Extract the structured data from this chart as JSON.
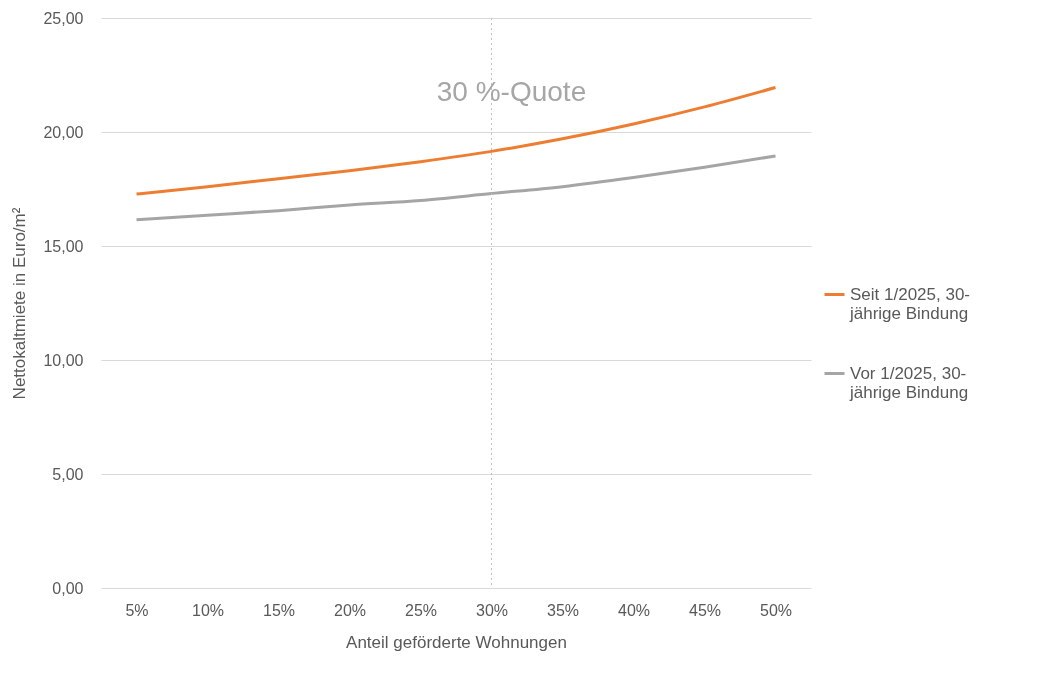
{
  "chart_data": {
    "type": "line",
    "xlabel": "Anteil geförderte Wohnungen",
    "ylabel": "Nettokaltmiete in Euro/m²",
    "categories": [
      "5%",
      "10%",
      "15%",
      "20%",
      "25%",
      "30%",
      "35%",
      "40%",
      "45%",
      "50%"
    ],
    "series": [
      {
        "name": "Seit 1/2025, 30-jährige Bindung",
        "color": "#ed7d31",
        "values": [
          17.28,
          17.6,
          17.95,
          18.3,
          18.7,
          19.15,
          19.7,
          20.35,
          21.1,
          21.95
        ]
      },
      {
        "name": "Vor 1/2025, 30-jährige Bindung",
        "color": "#a5a5a5",
        "values": [
          16.15,
          16.35,
          16.55,
          16.8,
          17.0,
          17.3,
          17.6,
          18.0,
          18.45,
          18.95
        ]
      }
    ],
    "ylim": [
      0,
      25
    ],
    "yticks": [
      {
        "value": 0,
        "label": "0,00"
      },
      {
        "value": 5,
        "label": "5,00"
      },
      {
        "value": 10,
        "label": "10,00"
      },
      {
        "value": 15,
        "label": "15,00"
      },
      {
        "value": 20,
        "label": "20,00"
      },
      {
        "value": 25,
        "label": "25,00"
      }
    ],
    "ref_lines": [
      {
        "axis": "x",
        "value": "30%",
        "label": "30 %-Quote",
        "color": "#bfbfbf",
        "line_style": "dotted"
      }
    ],
    "grid": "y",
    "legend": "right",
    "marker": "none",
    "line_style": "solid"
  }
}
